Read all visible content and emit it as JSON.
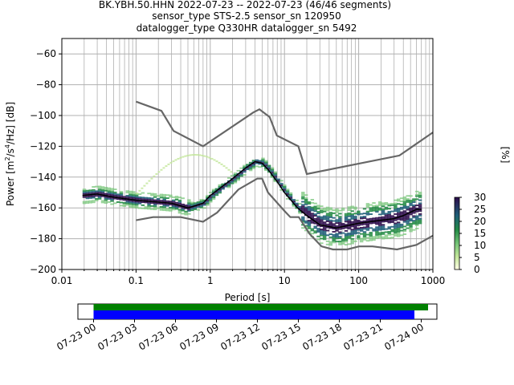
{
  "chart_data": {
    "type": "heatmap",
    "title_lines": [
      "BK.YBH.50.HHN   2022-07-23 -- 2022-07-23  (46/46 segments)",
      "sensor_type STS-2.5 sensor_sn 120950",
      "datalogger_type Q330HR datalogger_sn 5492"
    ],
    "xlabel": "Period [s]",
    "ylabel_parts": {
      "prefix": "Power [m",
      "sup1": "2",
      "mid1": "/s",
      "sup2": "4",
      "suffix": "/Hz] [dB]"
    },
    "x_scale": "log",
    "xlim": [
      0.01,
      1000
    ],
    "ylim": [
      -200,
      -50
    ],
    "x_ticks": [
      {
        "value": 0.01,
        "label": "0.01"
      },
      {
        "value": 0.1,
        "label": "0.1"
      },
      {
        "value": 1,
        "label": "1"
      },
      {
        "value": 10,
        "label": "10"
      },
      {
        "value": 100,
        "label": "100"
      },
      {
        "value": 1000,
        "label": "1000"
      }
    ],
    "y_ticks": [
      {
        "value": -60,
        "label": "−60"
      },
      {
        "value": -80,
        "label": "−80"
      },
      {
        "value": -100,
        "label": "−100"
      },
      {
        "value": -120,
        "label": "−120"
      },
      {
        "value": -140,
        "label": "−140"
      },
      {
        "value": -160,
        "label": "−160"
      },
      {
        "value": -180,
        "label": "−180"
      },
      {
        "value": -200,
        "label": "−200"
      }
    ],
    "grid": true,
    "noise_model_high": [
      [
        0.1,
        -91
      ],
      [
        0.22,
        -97
      ],
      [
        0.32,
        -110
      ],
      [
        0.8,
        -120
      ],
      [
        3.8,
        -98
      ],
      [
        4.6,
        -96
      ],
      [
        6.3,
        -101
      ],
      [
        7.9,
        -113
      ],
      [
        15.4,
        -120
      ],
      [
        20,
        -138
      ],
      [
        354,
        -126
      ],
      [
        1000,
        -111
      ]
    ],
    "noise_model_low": [
      [
        0.1,
        -168
      ],
      [
        0.17,
        -166
      ],
      [
        0.4,
        -166
      ],
      [
        0.8,
        -169
      ],
      [
        1.24,
        -163
      ],
      [
        2.4,
        -148
      ],
      [
        4.3,
        -141
      ],
      [
        5,
        -141
      ],
      [
        6,
        -150
      ],
      [
        10,
        -162
      ],
      [
        12,
        -166
      ],
      [
        15.6,
        -166
      ],
      [
        21.9,
        -177
      ],
      [
        31.6,
        -185
      ],
      [
        45,
        -187
      ],
      [
        70,
        -187
      ],
      [
        101,
        -185
      ],
      [
        154,
        -185
      ],
      [
        328,
        -187
      ],
      [
        600,
        -184
      ],
      [
        1000,
        -178
      ]
    ],
    "mean_curve": [
      [
        0.019,
        -152
      ],
      [
        0.03,
        -151
      ],
      [
        0.05,
        -153
      ],
      [
        0.1,
        -155
      ],
      [
        0.3,
        -157
      ],
      [
        0.5,
        -160
      ],
      [
        0.8,
        -157
      ],
      [
        1,
        -152
      ],
      [
        2,
        -141
      ],
      [
        3,
        -134
      ],
      [
        4,
        -130
      ],
      [
        5,
        -131
      ],
      [
        6,
        -135
      ],
      [
        8,
        -143
      ],
      [
        10,
        -150
      ],
      [
        15,
        -160
      ],
      [
        20,
        -165
      ],
      [
        30,
        -171
      ],
      [
        50,
        -173
      ],
      [
        100,
        -170
      ],
      [
        200,
        -168
      ],
      [
        300,
        -167
      ],
      [
        400,
        -165
      ],
      [
        600,
        -161
      ],
      [
        700,
        -161
      ]
    ],
    "colorbar": {
      "label": "[%]",
      "min": 0,
      "max": 30,
      "ticks": [
        {
          "value": 0,
          "label": "0"
        },
        {
          "value": 5,
          "label": "5"
        },
        {
          "value": 10,
          "label": "10"
        },
        {
          "value": 15,
          "label": "15"
        },
        {
          "value": 20,
          "label": "20"
        },
        {
          "value": 25,
          "label": "25"
        },
        {
          "value": 30,
          "label": "30"
        }
      ]
    },
    "coverage": {
      "start": "2022-07-23 00:00",
      "end": "2022-07-24 00:30",
      "tick_labels": [
        "07-23 00",
        "07-23 03",
        "07-23 06",
        "07-23 09",
        "07-23 12",
        "07-23 15",
        "07-23 18",
        "07-23 21",
        "07-24 00"
      ],
      "green_bar": [
        "2022-07-23 00:00",
        "2022-07-24 00:30"
      ],
      "blue_bar": [
        "2022-07-23 00:00",
        "2022-07-23 23:30"
      ],
      "colors": {
        "green": "#008000",
        "blue": "#0000ff"
      }
    },
    "colors": {
      "noise_model": "#666666",
      "mean": "#000000"
    }
  }
}
